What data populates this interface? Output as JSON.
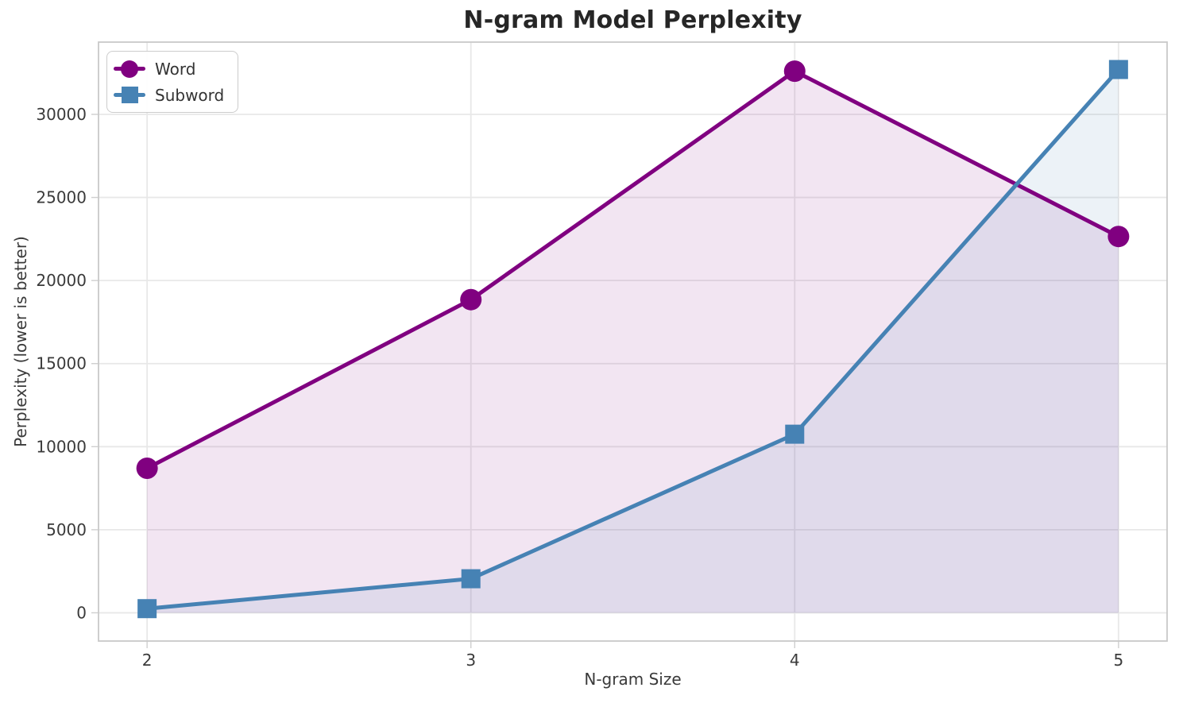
{
  "figure_title": "N-gram Model Perplexity",
  "chart_data": {
    "type": "line",
    "title": "N-gram Model Perplexity",
    "xlabel": "N-gram Size",
    "ylabel": "Perplexity (lower is better)",
    "x": [
      2,
      3,
      4,
      5
    ],
    "series": [
      {
        "name": "Word",
        "marker": "circle",
        "color": "#800080",
        "fill_opacity": 0.1,
        "values": [
          8700,
          18850,
          32600,
          22650
        ]
      },
      {
        "name": "Subword",
        "marker": "square",
        "color": "#4682b4",
        "fill_opacity": 0.1,
        "values": [
          250,
          2050,
          10750,
          32700
        ]
      }
    ],
    "xticks": [
      2,
      3,
      4,
      5
    ],
    "yticks": [
      0,
      5000,
      10000,
      15000,
      20000,
      25000,
      30000
    ],
    "xlim": [
      1.85,
      5.15
    ],
    "ylim": [
      -1700,
      34350
    ],
    "area_baseline": 0,
    "grid": true,
    "legend_position": "upper left"
  },
  "style_colors": {
    "grid": "#e8e8e8",
    "spine": "#c9c9c9",
    "tick": "#cfcfcf",
    "tick_label": "#3a3a3a",
    "title": "#262626",
    "background": "#ffffff"
  }
}
